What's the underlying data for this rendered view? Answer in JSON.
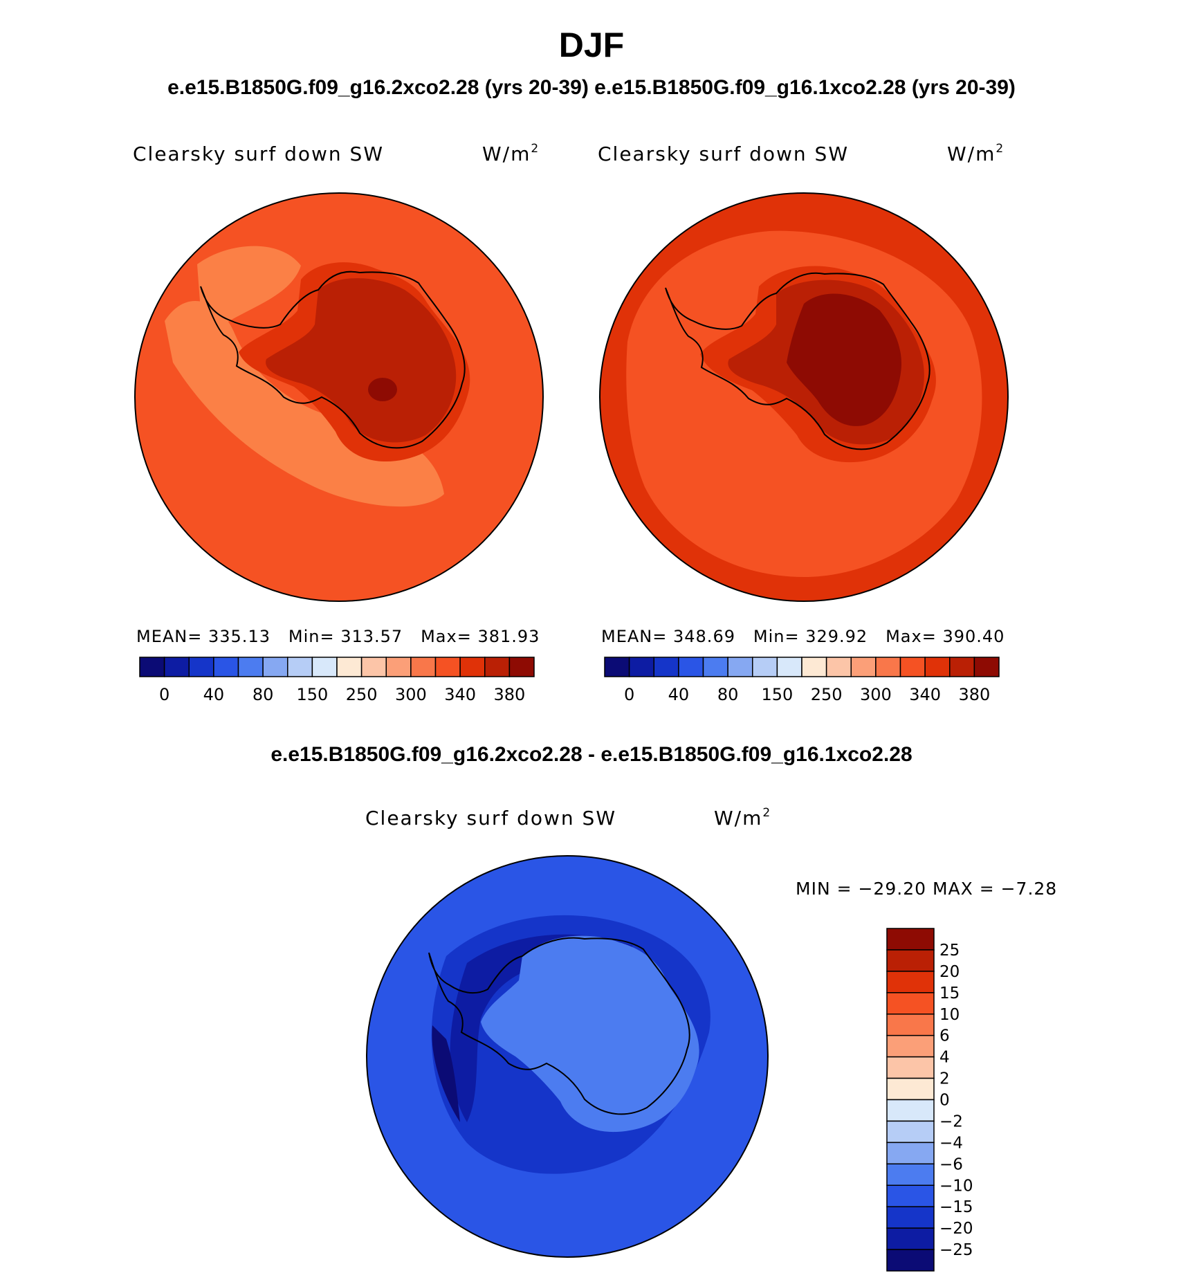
{
  "header": {
    "season": "DJF",
    "cases_title": "e.e15.B1850G.f09_g16.2xco2.28 (yrs 20-39) e.e15.B1850G.f09_g16.1xco2.28 (yrs 20-39)",
    "difference_title": "e.e15.B1850G.f09_g16.2xco2.28 - e.e15.B1850G.f09_g16.1xco2.28"
  },
  "panels": [
    {
      "variable": "Clearsky surf down SW",
      "units_base": "W/m",
      "units_sup": "2",
      "stats": {
        "mean_label": "MEAN=",
        "mean": "335.13",
        "min_label": "Min=",
        "min": "313.57",
        "max_label": "Max=",
        "max": "381.93"
      }
    },
    {
      "variable": "Clearsky surf down SW",
      "units_base": "W/m",
      "units_sup": "2",
      "stats": {
        "mean_label": "MEAN=",
        "mean": "348.69",
        "min_label": "Min=",
        "min": "329.92",
        "max_label": "Max=",
        "max": "390.40"
      }
    }
  ],
  "diff_panel": {
    "variable": "Clearsky surf down SW",
    "units_base": "W/m",
    "units_sup": "2",
    "minmax_text": "MIN = −29.20 MAX =  −7.28"
  },
  "colorbar_horizontal": {
    "colors": [
      "#0b0b75",
      "#0d1ca3",
      "#1535c9",
      "#2a55e6",
      "#4c7cf0",
      "#86a8f2",
      "#b6cdf6",
      "#d8e8fa",
      "#fde9d4",
      "#fcc5a8",
      "#fb9f78",
      "#f9774a",
      "#f55223",
      "#e03208",
      "#ba2005",
      "#8e0b03"
    ],
    "tick_labels": [
      "0",
      "40",
      "80",
      "150",
      "250",
      "300",
      "340",
      "380"
    ]
  },
  "colorbar_vertical": {
    "colors_top_to_bottom": [
      "#8e0b03",
      "#ba2005",
      "#e03208",
      "#f55223",
      "#f9774a",
      "#fb9f78",
      "#fcc5a8",
      "#fde9d4",
      "#d8e8fa",
      "#b6cdf6",
      "#86a8f2",
      "#4c7cf0",
      "#2a55e6",
      "#1535c9",
      "#0d1ca3",
      "#0b0b75"
    ],
    "tick_labels": [
      "25",
      "20",
      "15",
      "10",
      "6",
      "4",
      "2",
      "0",
      "−2",
      "−4",
      "−6",
      "−10",
      "−15",
      "−20",
      "−25"
    ]
  }
}
